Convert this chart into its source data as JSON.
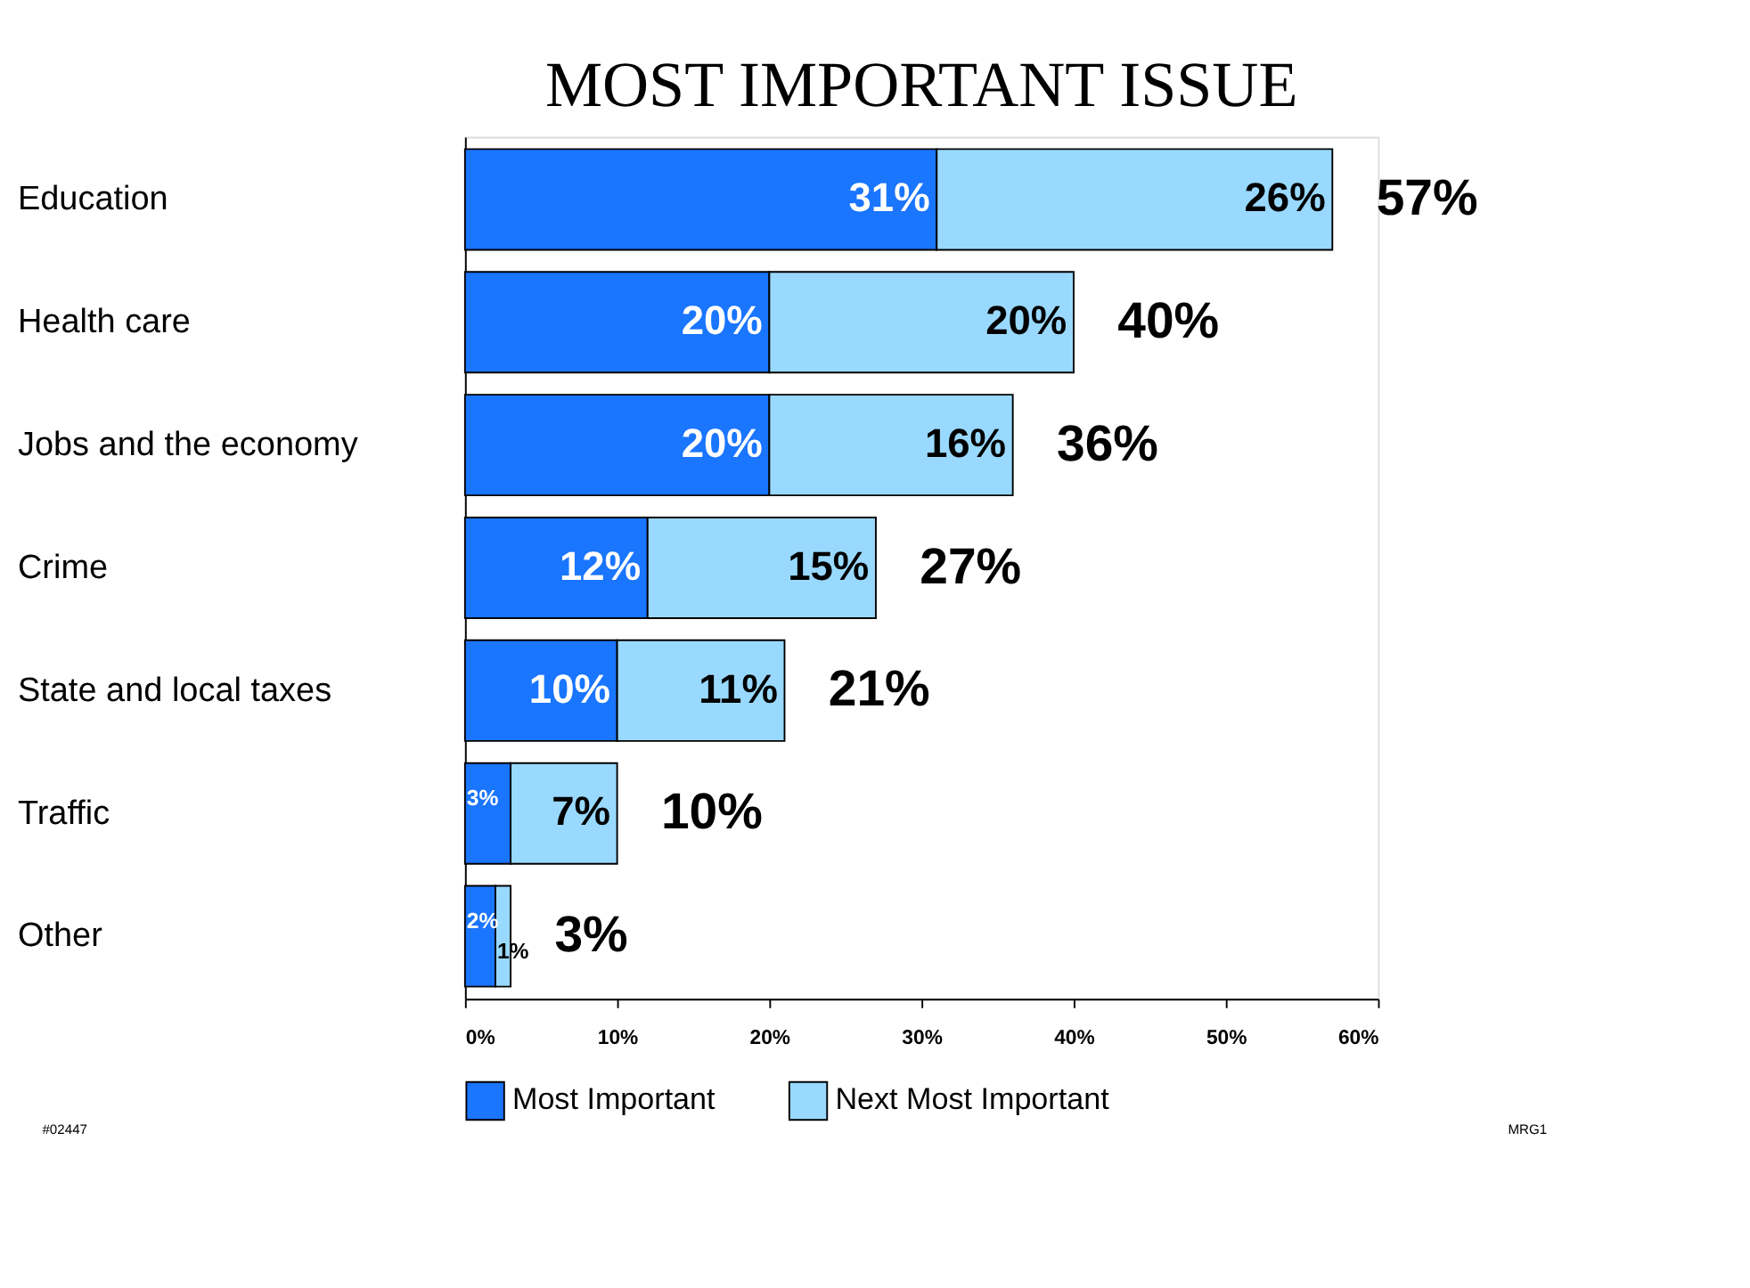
{
  "chart_data": {
    "type": "bar",
    "orientation": "horizontal",
    "stacked": true,
    "title": "MOST IMPORTANT ISSUE",
    "categories": [
      "Education",
      "Health care",
      "Jobs and the economy",
      "Crime",
      "State and local taxes",
      "Traffic",
      "Other"
    ],
    "series": [
      {
        "name": "Most Important",
        "color": "#1a75ff",
        "values": [
          31,
          20,
          20,
          12,
          10,
          3,
          2
        ],
        "value_labels": [
          "31%",
          "20%",
          "20%",
          "12%",
          "10%",
          "3%",
          "2%"
        ]
      },
      {
        "name": "Next Most Important",
        "color": "#99d9ff",
        "values": [
          26,
          20,
          16,
          15,
          11,
          7,
          1
        ],
        "value_labels": [
          "26%",
          "20%",
          "16%",
          "15%",
          "11%",
          "7%",
          "1%"
        ]
      }
    ],
    "totals": [
      "57%",
      "40%",
      "36%",
      "27%",
      "21%",
      "10%",
      "3%"
    ],
    "xlim": [
      0,
      60
    ],
    "xticks": [
      {
        "value": 0,
        "label": "0%"
      },
      {
        "value": 10,
        "label": "10%"
      },
      {
        "value": 20,
        "label": "20%"
      },
      {
        "value": 30,
        "label": "30%"
      },
      {
        "value": 40,
        "label": "40%"
      },
      {
        "value": 50,
        "label": "50%"
      },
      {
        "value": 60,
        "label": "60%"
      }
    ],
    "grid": false,
    "legend": "bottom",
    "annotations": [
      "#02447",
      "MRG1"
    ]
  }
}
